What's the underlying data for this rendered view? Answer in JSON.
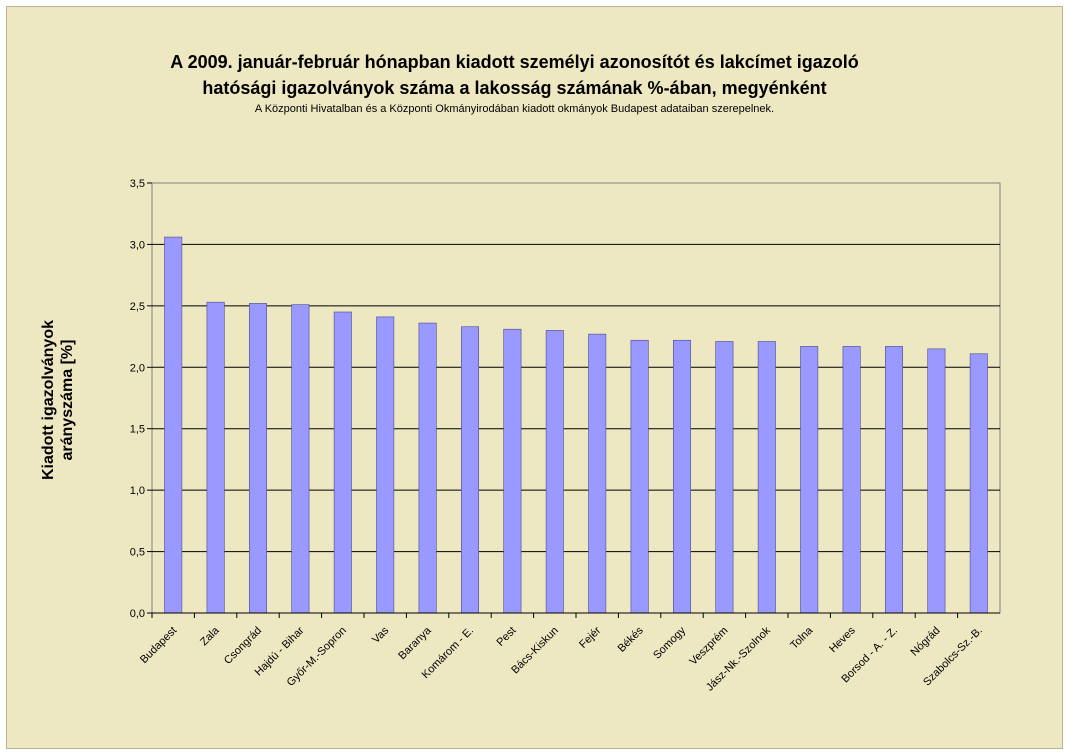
{
  "colors": {
    "background": "#eee8c2",
    "bar_fill": "#9999ff",
    "bar_stroke": "#4a4a8a",
    "grid": "#000000"
  },
  "chart_data": {
    "type": "bar",
    "title_line1": "A 2009. január-február hónapban kiadott személyi azonosítót és lakcímet igazoló",
    "title_line2": "hatósági igazolványok száma a lakosság  számának %-ában, megyénként",
    "subtitle": "A Központi Hivatalban és a Központi Okmányirodában kiadott okmányok Budapest adataiban szerepelnek.",
    "ylabel_line1": "Kiadott igazolványok",
    "ylabel_line2": "arányszáma [%]",
    "xlabel": "",
    "ylim": [
      0,
      3.5
    ],
    "yticks": [
      "0,0",
      "0,5",
      "1,0",
      "1,5",
      "2,0",
      "2,5",
      "3,0",
      "3,5"
    ],
    "grid": true,
    "legend": "none",
    "categories": [
      "Budapest",
      "Zala",
      "Csongrád",
      "Hajdú - Bihar",
      "Győr-M.-Sopron",
      "Vas",
      "Baranya",
      "Komárom - E.",
      "Pest",
      "Bács-Kiskun",
      "Fejér",
      "Békés",
      "Somogy",
      "Veszprém",
      "Jász-Nk.-Szolnok",
      "Tolna",
      "Heves",
      "Borsod - A. - Z.",
      "Nógrád",
      "Szabolcs-Sz.-B."
    ],
    "values": [
      3.06,
      2.53,
      2.52,
      2.51,
      2.45,
      2.41,
      2.36,
      2.33,
      2.31,
      2.3,
      2.27,
      2.22,
      2.22,
      2.21,
      2.21,
      2.17,
      2.17,
      2.17,
      2.15,
      2.11
    ]
  }
}
